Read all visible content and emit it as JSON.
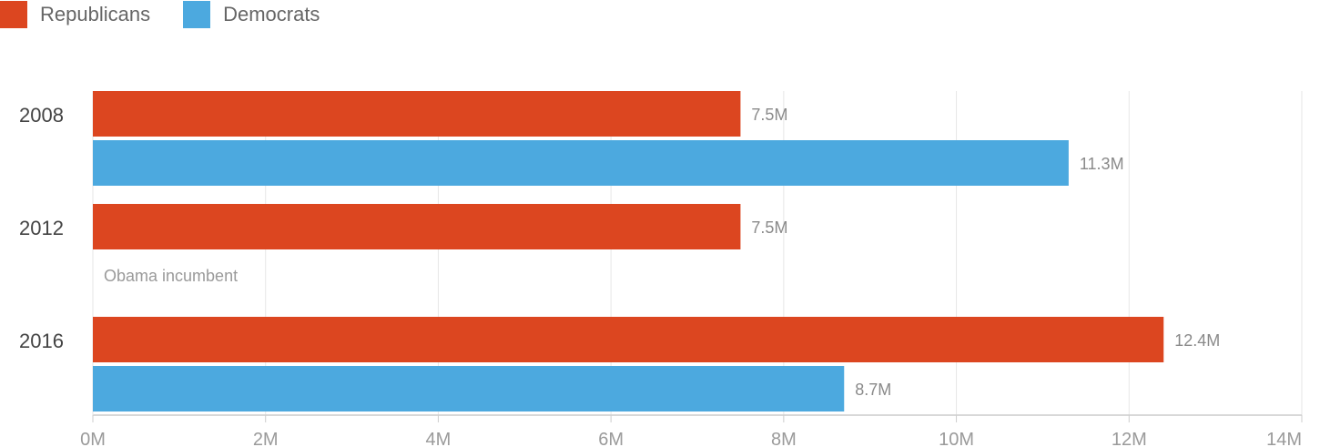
{
  "legend": [
    {
      "label": "Republicans",
      "color": "#dc4620"
    },
    {
      "label": "Democrats",
      "color": "#4ca9df"
    }
  ],
  "chart_data": {
    "type": "bar",
    "orientation": "horizontal",
    "categories": [
      "2008",
      "2012",
      "2016"
    ],
    "series": [
      {
        "name": "Republicans",
        "color": "#dc4620",
        "values": [
          7.5,
          7.5,
          12.4
        ],
        "labels": [
          "7.5M",
          "7.5M",
          "12.4M"
        ]
      },
      {
        "name": "Democrats",
        "color": "#4ca9df",
        "values": [
          11.3,
          null,
          8.7
        ],
        "labels": [
          "11.3M",
          "",
          "8.7M"
        ]
      }
    ],
    "annotations": [
      {
        "category": "2012",
        "series": "Democrats",
        "text": "Obama incumbent"
      }
    ],
    "xlim": [
      0,
      14
    ],
    "x_ticks": [
      0,
      2,
      4,
      6,
      8,
      10,
      12,
      14
    ],
    "x_tick_labels": [
      "0M",
      "2M",
      "4M",
      "6M",
      "8M",
      "10M",
      "12M",
      "14M"
    ],
    "grid": true,
    "legend_position": "top-left"
  }
}
